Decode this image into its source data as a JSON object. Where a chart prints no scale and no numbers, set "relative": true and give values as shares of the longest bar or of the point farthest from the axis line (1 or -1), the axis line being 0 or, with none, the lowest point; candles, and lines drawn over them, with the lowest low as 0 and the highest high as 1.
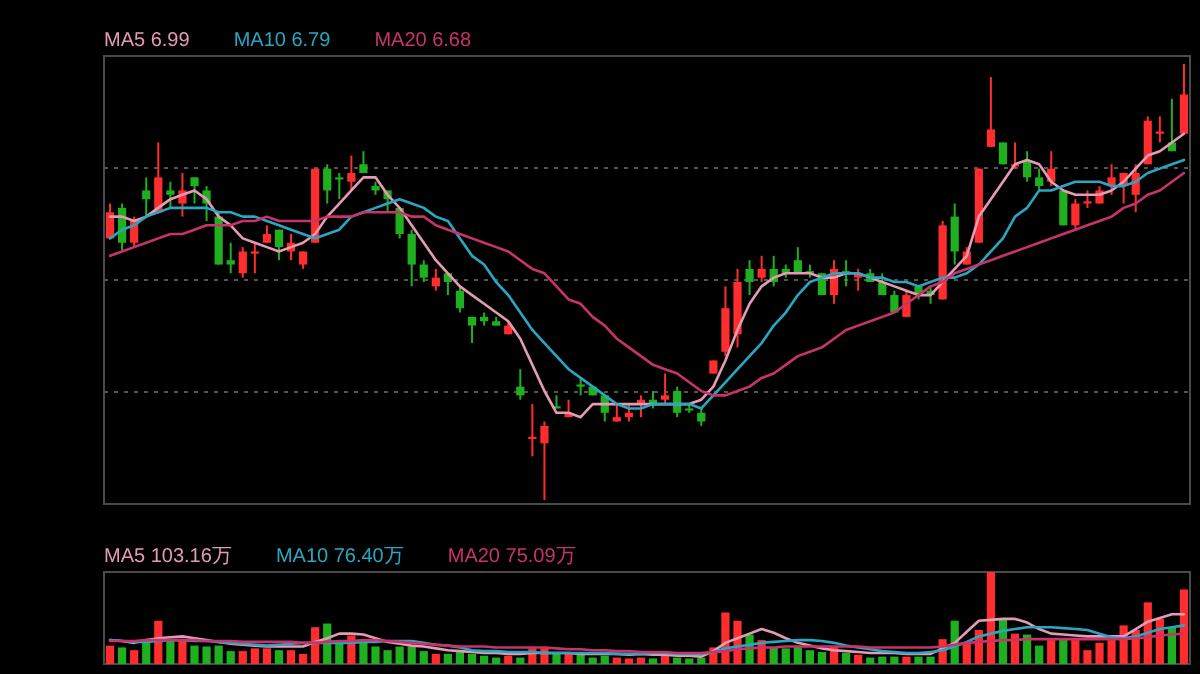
{
  "chart_data": [
    {
      "type": "candlestick",
      "relative": true,
      "grid": "y",
      "legend": "top left",
      "categories": [
        null,
        null,
        null,
        null,
        null,
        null,
        null,
        null,
        null,
        null,
        null,
        null,
        null,
        null,
        null,
        null,
        null,
        null,
        null,
        null,
        null,
        null,
        null,
        null,
        null,
        null,
        null,
        null,
        null,
        null,
        null,
        null,
        null,
        null,
        null,
        null,
        null,
        null,
        null,
        null,
        null,
        null,
        null,
        null,
        null,
        null,
        null,
        null,
        null,
        null,
        null,
        null,
        null,
        null,
        null,
        null,
        null,
        null,
        null,
        null,
        null,
        null,
        null,
        null,
        null,
        null,
        null,
        null,
        null,
        null,
        null,
        null,
        null,
        null,
        null,
        null,
        null,
        null,
        null,
        null,
        null,
        null,
        null,
        null,
        null,
        null,
        null,
        null,
        null,
        null
      ],
      "ohlc": [
        [
          0.6,
          0.68,
          0.6,
          0.66
        ],
        [
          0.67,
          0.68,
          0.57,
          0.59
        ],
        [
          0.59,
          0.65,
          0.58,
          0.64
        ],
        [
          0.71,
          0.74,
          0.65,
          0.69
        ],
        [
          0.66,
          0.82,
          0.66,
          0.74
        ],
        [
          0.71,
          0.73,
          0.67,
          0.7
        ],
        [
          0.68,
          0.75,
          0.65,
          0.71
        ],
        [
          0.74,
          0.74,
          0.68,
          0.72
        ],
        [
          0.71,
          0.72,
          0.64,
          0.68
        ],
        [
          0.65,
          0.66,
          0.54,
          0.54
        ],
        [
          0.55,
          0.59,
          0.52,
          0.54
        ],
        [
          0.52,
          0.58,
          0.51,
          0.57
        ],
        [
          0.565,
          0.59,
          0.52,
          0.57
        ],
        [
          0.59,
          0.63,
          0.59,
          0.61
        ],
        [
          0.62,
          0.62,
          0.55,
          0.58
        ],
        [
          0.57,
          0.61,
          0.55,
          0.59
        ],
        [
          0.54,
          0.57,
          0.53,
          0.57
        ],
        [
          0.59,
          0.76,
          0.59,
          0.76
        ],
        [
          0.76,
          0.77,
          0.68,
          0.71
        ],
        [
          0.74,
          0.75,
          0.69,
          0.735
        ],
        [
          0.73,
          0.79,
          0.71,
          0.75
        ],
        [
          0.77,
          0.8,
          0.75,
          0.75
        ],
        [
          0.72,
          0.73,
          0.7,
          0.71
        ],
        [
          0.71,
          0.71,
          0.66,
          0.69
        ],
        [
          0.67,
          0.67,
          0.6,
          0.61
        ],
        [
          0.61,
          0.62,
          0.49,
          0.54
        ],
        [
          0.54,
          0.55,
          0.5,
          0.51
        ],
        [
          0.49,
          0.53,
          0.48,
          0.51
        ],
        [
          0.52,
          0.52,
          0.47,
          0.5
        ],
        [
          0.48,
          0.49,
          0.43,
          0.44
        ],
        [
          0.42,
          0.42,
          0.36,
          0.4
        ],
        [
          0.42,
          0.43,
          0.4,
          0.41
        ],
        [
          0.41,
          0.42,
          0.4,
          0.4
        ],
        [
          0.38,
          0.41,
          0.38,
          0.4
        ],
        [
          0.26,
          0.3,
          0.23,
          0.24
        ],
        [
          0.14,
          0.22,
          0.1,
          0.145
        ],
        [
          0.13,
          0.18,
          0.0,
          0.17
        ],
        [
          0.215,
          0.24,
          0.21,
          0.21
        ],
        [
          0.19,
          0.23,
          0.19,
          0.2
        ],
        [
          0.265,
          0.28,
          0.24,
          0.26
        ],
        [
          0.26,
          0.26,
          0.24,
          0.24
        ],
        [
          0.24,
          0.24,
          0.18,
          0.2
        ],
        [
          0.18,
          0.22,
          0.18,
          0.19
        ],
        [
          0.19,
          0.22,
          0.18,
          0.2
        ],
        [
          0.22,
          0.24,
          0.19,
          0.23
        ],
        [
          0.23,
          0.25,
          0.21,
          0.22
        ],
        [
          0.23,
          0.29,
          0.22,
          0.24
        ],
        [
          0.25,
          0.26,
          0.19,
          0.2
        ],
        [
          0.21,
          0.22,
          0.2,
          0.205
        ],
        [
          0.2,
          0.21,
          0.17,
          0.18
        ],
        [
          0.29,
          0.32,
          0.29,
          0.32
        ],
        [
          0.34,
          0.49,
          0.33,
          0.44
        ],
        [
          0.38,
          0.53,
          0.35,
          0.5
        ],
        [
          0.53,
          0.55,
          0.47,
          0.5
        ],
        [
          0.51,
          0.56,
          0.5,
          0.53
        ],
        [
          0.53,
          0.56,
          0.49,
          0.5
        ],
        [
          0.53,
          0.54,
          0.51,
          0.52
        ],
        [
          0.55,
          0.58,
          0.52,
          0.52
        ],
        [
          0.525,
          0.54,
          0.51,
          0.52
        ],
        [
          0.52,
          0.52,
          0.47,
          0.47
        ],
        [
          0.47,
          0.55,
          0.45,
          0.53
        ],
        [
          0.525,
          0.55,
          0.49,
          0.52
        ],
        [
          0.51,
          0.53,
          0.48,
          0.52
        ],
        [
          0.52,
          0.53,
          0.5,
          0.5
        ],
        [
          0.5,
          0.52,
          0.47,
          0.47
        ],
        [
          0.47,
          0.48,
          0.43,
          0.43
        ],
        [
          0.42,
          0.48,
          0.42,
          0.47
        ],
        [
          0.49,
          0.49,
          0.46,
          0.47
        ],
        [
          0.48,
          0.49,
          0.45,
          0.47
        ],
        [
          0.46,
          0.64,
          0.46,
          0.63
        ],
        [
          0.65,
          0.68,
          0.54,
          0.57
        ],
        [
          0.54,
          0.58,
          0.54,
          0.57
        ],
        [
          0.59,
          0.76,
          0.59,
          0.76
        ],
        [
          0.81,
          0.97,
          0.81,
          0.85
        ],
        [
          0.82,
          0.82,
          0.77,
          0.77
        ],
        [
          0.765,
          0.82,
          0.76,
          0.77
        ],
        [
          0.78,
          0.8,
          0.73,
          0.74
        ],
        [
          0.74,
          0.76,
          0.71,
          0.72
        ],
        [
          0.73,
          0.8,
          0.72,
          0.76
        ],
        [
          0.71,
          0.71,
          0.63,
          0.63
        ],
        [
          0.63,
          0.69,
          0.62,
          0.68
        ],
        [
          0.68,
          0.71,
          0.67,
          0.685
        ],
        [
          0.68,
          0.72,
          0.68,
          0.71
        ],
        [
          0.72,
          0.77,
          0.7,
          0.74
        ],
        [
          0.72,
          0.75,
          0.68,
          0.75
        ],
        [
          0.7,
          0.77,
          0.66,
          0.75
        ],
        [
          0.77,
          0.88,
          0.77,
          0.87
        ],
        [
          0.84,
          0.88,
          0.82,
          0.845
        ],
        [
          0.82,
          0.92,
          0.8,
          0.8
        ],
        [
          0.84,
          1.0,
          0.84,
          0.93
        ]
      ],
      "colors": [
        "#ff2d2d",
        "#1fb01f",
        "#ff2d2d",
        "#1fb01f",
        "#ff2d2d",
        "#1fb01f",
        "#ff2d2d",
        "#1fb01f",
        "#1fb01f",
        "#1fb01f",
        "#1fb01f",
        "#ff2d2d",
        "#ff2d2d",
        "#ff2d2d",
        "#1fb01f",
        "#ff2d2d",
        "#ff2d2d",
        "#ff2d2d",
        "#1fb01f",
        "#1fb01f",
        "#ff2d2d",
        "#1fb01f",
        "#1fb01f",
        "#1fb01f",
        "#1fb01f",
        "#1fb01f",
        "#1fb01f",
        "#ff2d2d",
        "#1fb01f",
        "#1fb01f",
        "#1fb01f",
        "#1fb01f",
        "#1fb01f",
        "#ff2d2d",
        "#1fb01f",
        "#ff2d2d",
        "#ff2d2d",
        "#1fb01f",
        "#ff2d2d",
        "#1fb01f",
        "#1fb01f",
        "#1fb01f",
        "#ff2d2d",
        "#ff2d2d",
        "#ff2d2d",
        "#1fb01f",
        "#ff2d2d",
        "#1fb01f",
        "#1fb01f",
        "#1fb01f",
        "#ff2d2d",
        "#ff2d2d",
        "#ff2d2d",
        "#1fb01f",
        "#ff2d2d",
        "#1fb01f",
        "#1fb01f",
        "#1fb01f",
        "#1fb01f",
        "#1fb01f",
        "#ff2d2d",
        "#1fb01f",
        "#ff2d2d",
        "#1fb01f",
        "#1fb01f",
        "#1fb01f",
        "#ff2d2d",
        "#1fb01f",
        "#1fb01f",
        "#ff2d2d",
        "#1fb01f",
        "#ff2d2d",
        "#ff2d2d",
        "#ff2d2d",
        "#1fb01f",
        "#ff2d2d",
        "#1fb01f",
        "#1fb01f",
        "#ff2d2d",
        "#1fb01f",
        "#ff2d2d",
        "#ff2d2d",
        "#ff2d2d",
        "#ff2d2d",
        "#ff2d2d",
        "#ff2d2d",
        "#ff2d2d",
        "#ff2d2d",
        "#1fb01f",
        "#ff2d2d"
      ],
      "series": [
        {
          "name": "MA5 6.99",
          "type": "line",
          "color": "#e39bb6",
          "values": [
            0.65,
            0.65,
            0.64,
            0.65,
            0.67,
            0.69,
            0.7,
            0.71,
            0.69,
            0.65,
            0.63,
            0.6,
            0.59,
            0.58,
            0.57,
            0.58,
            0.59,
            0.61,
            0.65,
            0.68,
            0.71,
            0.74,
            0.74,
            0.7,
            0.67,
            0.63,
            0.59,
            0.55,
            0.52,
            0.49,
            0.47,
            0.45,
            0.43,
            0.41,
            0.37,
            0.31,
            0.25,
            0.2,
            0.2,
            0.19,
            0.22,
            0.22,
            0.22,
            0.22,
            0.22,
            0.22,
            0.22,
            0.22,
            0.22,
            0.23,
            0.26,
            0.32,
            0.39,
            0.45,
            0.49,
            0.51,
            0.52,
            0.52,
            0.52,
            0.51,
            0.51,
            0.52,
            0.52,
            0.51,
            0.5,
            0.49,
            0.48,
            0.47,
            0.47,
            0.5,
            0.53,
            0.56,
            0.65,
            0.69,
            0.73,
            0.77,
            0.78,
            0.77,
            0.73,
            0.71,
            0.7,
            0.7,
            0.7,
            0.71,
            0.73,
            0.76,
            0.79,
            0.8,
            0.82,
            0.84
          ]
        },
        {
          "name": "MA10 6.79",
          "type": "line",
          "color": "#2aa6c2",
          "values": [
            0.6,
            0.62,
            0.63,
            0.65,
            0.66,
            0.67,
            0.67,
            0.67,
            0.67,
            0.66,
            0.66,
            0.65,
            0.65,
            0.64,
            0.63,
            0.62,
            0.61,
            0.6,
            0.61,
            0.62,
            0.65,
            0.66,
            0.67,
            0.68,
            0.69,
            0.68,
            0.67,
            0.65,
            0.64,
            0.6,
            0.56,
            0.54,
            0.5,
            0.47,
            0.43,
            0.39,
            0.36,
            0.33,
            0.3,
            0.28,
            0.26,
            0.24,
            0.22,
            0.21,
            0.21,
            0.22,
            0.22,
            0.22,
            0.22,
            0.21,
            0.24,
            0.27,
            0.3,
            0.33,
            0.36,
            0.4,
            0.43,
            0.47,
            0.5,
            0.51,
            0.52,
            0.52,
            0.52,
            0.51,
            0.51,
            0.5,
            0.5,
            0.49,
            0.5,
            0.51,
            0.51,
            0.52,
            0.54,
            0.57,
            0.6,
            0.65,
            0.67,
            0.71,
            0.71,
            0.72,
            0.73,
            0.73,
            0.73,
            0.72,
            0.72,
            0.73,
            0.75,
            0.76,
            0.77,
            0.78
          ]
        },
        {
          "name": "MA20 6.68",
          "type": "line",
          "color": "#c8336c",
          "values": [
            0.56,
            0.57,
            0.58,
            0.59,
            0.6,
            0.61,
            0.61,
            0.62,
            0.63,
            0.63,
            0.63,
            0.64,
            0.64,
            0.65,
            0.64,
            0.64,
            0.64,
            0.64,
            0.65,
            0.65,
            0.65,
            0.66,
            0.66,
            0.66,
            0.66,
            0.65,
            0.65,
            0.63,
            0.62,
            0.61,
            0.6,
            0.59,
            0.58,
            0.57,
            0.55,
            0.53,
            0.52,
            0.49,
            0.46,
            0.45,
            0.42,
            0.4,
            0.37,
            0.35,
            0.33,
            0.31,
            0.3,
            0.29,
            0.27,
            0.25,
            0.24,
            0.24,
            0.25,
            0.26,
            0.28,
            0.29,
            0.31,
            0.33,
            0.34,
            0.35,
            0.37,
            0.39,
            0.4,
            0.41,
            0.42,
            0.43,
            0.45,
            0.47,
            0.49,
            0.5,
            0.52,
            0.53,
            0.54,
            0.55,
            0.56,
            0.57,
            0.58,
            0.59,
            0.6,
            0.61,
            0.62,
            0.63,
            0.64,
            0.65,
            0.67,
            0.68,
            0.7,
            0.71,
            0.73,
            0.75
          ]
        }
      ]
    },
    {
      "type": "bar",
      "relative": true,
      "legend": "top left",
      "categories": [
        null,
        null,
        null,
        null,
        null,
        null,
        null,
        null,
        null,
        null,
        null,
        null,
        null,
        null,
        null,
        null,
        null,
        null,
        null,
        null,
        null,
        null,
        null,
        null,
        null,
        null,
        null,
        null,
        null,
        null,
        null,
        null,
        null,
        null,
        null,
        null,
        null,
        null,
        null,
        null,
        null,
        null,
        null,
        null,
        null,
        null,
        null,
        null,
        null,
        null,
        null,
        null,
        null,
        null,
        null,
        null,
        null,
        null,
        null,
        null,
        null,
        null,
        null,
        null,
        null,
        null,
        null,
        null,
        null,
        null,
        null,
        null,
        null,
        null,
        null,
        null,
        null,
        null,
        null,
        null,
        null,
        null,
        null,
        null,
        null,
        null,
        null,
        null,
        null,
        null
      ],
      "values": [
        0.2,
        0.18,
        0.15,
        0.24,
        0.47,
        0.26,
        0.25,
        0.2,
        0.19,
        0.2,
        0.14,
        0.14,
        0.17,
        0.17,
        0.15,
        0.15,
        0.11,
        0.4,
        0.44,
        0.26,
        0.31,
        0.23,
        0.19,
        0.15,
        0.19,
        0.19,
        0.14,
        0.11,
        0.11,
        0.13,
        0.11,
        0.09,
        0.07,
        0.09,
        0.07,
        0.17,
        0.17,
        0.12,
        0.11,
        0.11,
        0.07,
        0.09,
        0.07,
        0.06,
        0.07,
        0.06,
        0.13,
        0.07,
        0.06,
        0.07,
        0.18,
        0.56,
        0.47,
        0.32,
        0.26,
        0.18,
        0.17,
        0.19,
        0.15,
        0.13,
        0.19,
        0.12,
        0.1,
        0.07,
        0.08,
        0.08,
        0.08,
        0.08,
        0.08,
        0.27,
        0.47,
        0.23,
        0.37,
        1.0,
        0.49,
        0.33,
        0.32,
        0.2,
        0.26,
        0.26,
        0.26,
        0.15,
        0.23,
        0.26,
        0.42,
        0.37,
        0.67,
        0.49,
        0.4,
        0.81
      ],
      "colors": [
        "#ff2d2d",
        "#1fb01f",
        "#ff2d2d",
        "#1fb01f",
        "#ff2d2d",
        "#1fb01f",
        "#ff2d2d",
        "#1fb01f",
        "#1fb01f",
        "#1fb01f",
        "#1fb01f",
        "#ff2d2d",
        "#ff2d2d",
        "#ff2d2d",
        "#1fb01f",
        "#ff2d2d",
        "#ff2d2d",
        "#ff2d2d",
        "#1fb01f",
        "#1fb01f",
        "#ff2d2d",
        "#1fb01f",
        "#1fb01f",
        "#1fb01f",
        "#1fb01f",
        "#1fb01f",
        "#1fb01f",
        "#ff2d2d",
        "#1fb01f",
        "#1fb01f",
        "#1fb01f",
        "#1fb01f",
        "#1fb01f",
        "#ff2d2d",
        "#1fb01f",
        "#ff2d2d",
        "#ff2d2d",
        "#1fb01f",
        "#ff2d2d",
        "#1fb01f",
        "#1fb01f",
        "#1fb01f",
        "#ff2d2d",
        "#ff2d2d",
        "#ff2d2d",
        "#1fb01f",
        "#ff2d2d",
        "#1fb01f",
        "#1fb01f",
        "#1fb01f",
        "#ff2d2d",
        "#ff2d2d",
        "#ff2d2d",
        "#1fb01f",
        "#ff2d2d",
        "#1fb01f",
        "#1fb01f",
        "#1fb01f",
        "#1fb01f",
        "#1fb01f",
        "#ff2d2d",
        "#1fb01f",
        "#ff2d2d",
        "#1fb01f",
        "#1fb01f",
        "#1fb01f",
        "#ff2d2d",
        "#1fb01f",
        "#1fb01f",
        "#ff2d2d",
        "#1fb01f",
        "#ff2d2d",
        "#ff2d2d",
        "#ff2d2d",
        "#1fb01f",
        "#ff2d2d",
        "#1fb01f",
        "#1fb01f",
        "#ff2d2d",
        "#1fb01f",
        "#ff2d2d",
        "#ff2d2d",
        "#ff2d2d",
        "#ff2d2d",
        "#ff2d2d",
        "#ff2d2d",
        "#ff2d2d",
        "#ff2d2d",
        "#1fb01f",
        "#ff2d2d"
      ],
      "series": [
        {
          "name": "MA5 103.16万",
          "type": "line",
          "color": "#e39bb6",
          "values": [
            0.26,
            0.25,
            0.23,
            0.26,
            0.28,
            0.29,
            0.3,
            0.28,
            0.26,
            0.24,
            0.22,
            0.21,
            0.2,
            0.19,
            0.19,
            0.19,
            0.19,
            0.24,
            0.28,
            0.33,
            0.33,
            0.32,
            0.28,
            0.24,
            0.22,
            0.2,
            0.19,
            0.17,
            0.15,
            0.14,
            0.13,
            0.12,
            0.12,
            0.11,
            0.11,
            0.12,
            0.12,
            0.12,
            0.12,
            0.11,
            0.11,
            0.11,
            0.11,
            0.1,
            0.11,
            0.1,
            0.1,
            0.09,
            0.09,
            0.08,
            0.14,
            0.23,
            0.28,
            0.33,
            0.38,
            0.34,
            0.28,
            0.23,
            0.2,
            0.17,
            0.15,
            0.14,
            0.13,
            0.12,
            0.12,
            0.12,
            0.11,
            0.11,
            0.11,
            0.17,
            0.23,
            0.35,
            0.47,
            0.48,
            0.49,
            0.49,
            0.45,
            0.38,
            0.33,
            0.32,
            0.31,
            0.3,
            0.3,
            0.3,
            0.3,
            0.38,
            0.46,
            0.5,
            0.54,
            0.54
          ]
        },
        {
          "name": "MA10 76.40万",
          "type": "line",
          "color": "#2aa6c2",
          "values": [
            0.26,
            0.25,
            0.24,
            0.24,
            0.25,
            0.26,
            0.26,
            0.25,
            0.25,
            0.24,
            0.23,
            0.22,
            0.21,
            0.2,
            0.21,
            0.22,
            0.23,
            0.23,
            0.23,
            0.23,
            0.23,
            0.24,
            0.24,
            0.25,
            0.25,
            0.25,
            0.23,
            0.21,
            0.2,
            0.18,
            0.15,
            0.14,
            0.14,
            0.13,
            0.13,
            0.13,
            0.12,
            0.12,
            0.12,
            0.12,
            0.12,
            0.12,
            0.11,
            0.11,
            0.11,
            0.12,
            0.12,
            0.11,
            0.11,
            0.11,
            0.13,
            0.17,
            0.19,
            0.21,
            0.23,
            0.24,
            0.25,
            0.26,
            0.26,
            0.25,
            0.23,
            0.2,
            0.18,
            0.16,
            0.14,
            0.13,
            0.12,
            0.12,
            0.13,
            0.15,
            0.19,
            0.24,
            0.3,
            0.33,
            0.36,
            0.38,
            0.4,
            0.4,
            0.4,
            0.39,
            0.38,
            0.37,
            0.33,
            0.29,
            0.28,
            0.3,
            0.34,
            0.38,
            0.4,
            0.42
          ]
        },
        {
          "name": "MA20 75.09万",
          "type": "line",
          "color": "#c8336c",
          "values": [
            0.25,
            0.25,
            0.25,
            0.26,
            0.26,
            0.26,
            0.26,
            0.26,
            0.25,
            0.25,
            0.25,
            0.24,
            0.24,
            0.24,
            0.24,
            0.24,
            0.23,
            0.23,
            0.24,
            0.25,
            0.25,
            0.26,
            0.26,
            0.25,
            0.24,
            0.23,
            0.22,
            0.21,
            0.2,
            0.19,
            0.19,
            0.19,
            0.18,
            0.18,
            0.18,
            0.18,
            0.18,
            0.17,
            0.16,
            0.16,
            0.15,
            0.15,
            0.14,
            0.14,
            0.13,
            0.13,
            0.13,
            0.12,
            0.12,
            0.12,
            0.13,
            0.14,
            0.16,
            0.17,
            0.18,
            0.18,
            0.19,
            0.19,
            0.19,
            0.19,
            0.19,
            0.19,
            0.19,
            0.18,
            0.18,
            0.18,
            0.18,
            0.18,
            0.18,
            0.19,
            0.21,
            0.23,
            0.24,
            0.25,
            0.26,
            0.26,
            0.27,
            0.27,
            0.27,
            0.27,
            0.27,
            0.27,
            0.27,
            0.27,
            0.27,
            0.28,
            0.29,
            0.31,
            0.32,
            0.33
          ]
        }
      ]
    }
  ]
}
